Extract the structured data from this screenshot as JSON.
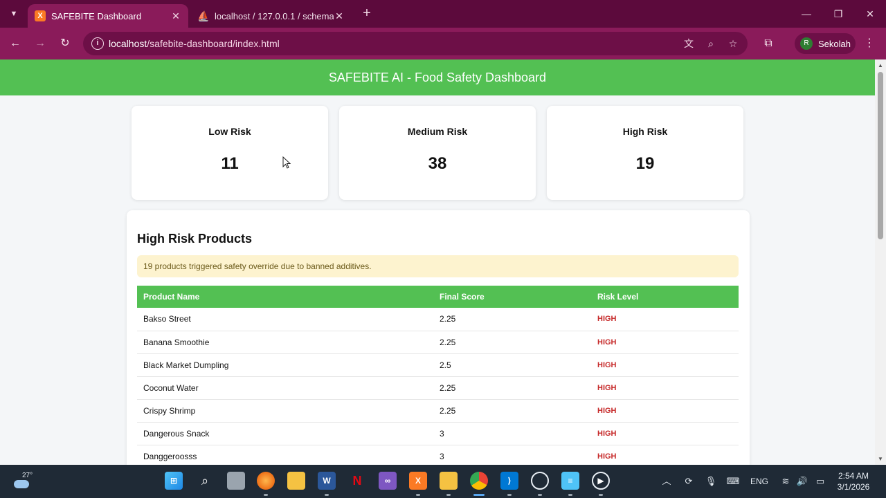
{
  "browser": {
    "tabs": [
      {
        "title": "SAFEBITE Dashboard",
        "favicon": "xampp-icon",
        "active": true
      },
      {
        "title": "localhost / 127.0.0.1 / schema /",
        "favicon": "phpmyadmin-icon",
        "active": false
      }
    ],
    "url": {
      "host": "localhost",
      "path": "/safebite-dashboard/index.html"
    },
    "profile": {
      "initial": "R",
      "name": "Sekolah"
    }
  },
  "header": {
    "title": "SAFEBITE AI - Food Safety Dashboard"
  },
  "summary": [
    {
      "label": "Low Risk",
      "value": "11"
    },
    {
      "label": "Medium Risk",
      "value": "38"
    },
    {
      "label": "High Risk",
      "value": "19"
    }
  ],
  "high_risk": {
    "title": "High Risk Products",
    "alert": "19 products triggered safety override due to banned additives.",
    "columns": [
      "Product Name",
      "Final Score",
      "Risk Level"
    ],
    "rows": [
      {
        "name": "Bakso Street",
        "score": "2.25",
        "risk": "HIGH"
      },
      {
        "name": "Banana Smoothie",
        "score": "2.25",
        "risk": "HIGH"
      },
      {
        "name": "Black Market Dumpling",
        "score": "2.5",
        "risk": "HIGH"
      },
      {
        "name": "Coconut Water",
        "score": "2.25",
        "risk": "HIGH"
      },
      {
        "name": "Crispy Shrimp",
        "score": "2.25",
        "risk": "HIGH"
      },
      {
        "name": "Dangerous Snack",
        "score": "3",
        "risk": "HIGH"
      },
      {
        "name": "Danggeroosss",
        "score": "3",
        "risk": "HIGH"
      }
    ]
  },
  "taskbar": {
    "weather_temp": "27°",
    "language": "ENG",
    "time": "2:54 AM",
    "date": "3/1/2026"
  },
  "colors": {
    "accent": "#53c053",
    "chrome": "#8a1b5a",
    "risk_high": "#c62828"
  }
}
